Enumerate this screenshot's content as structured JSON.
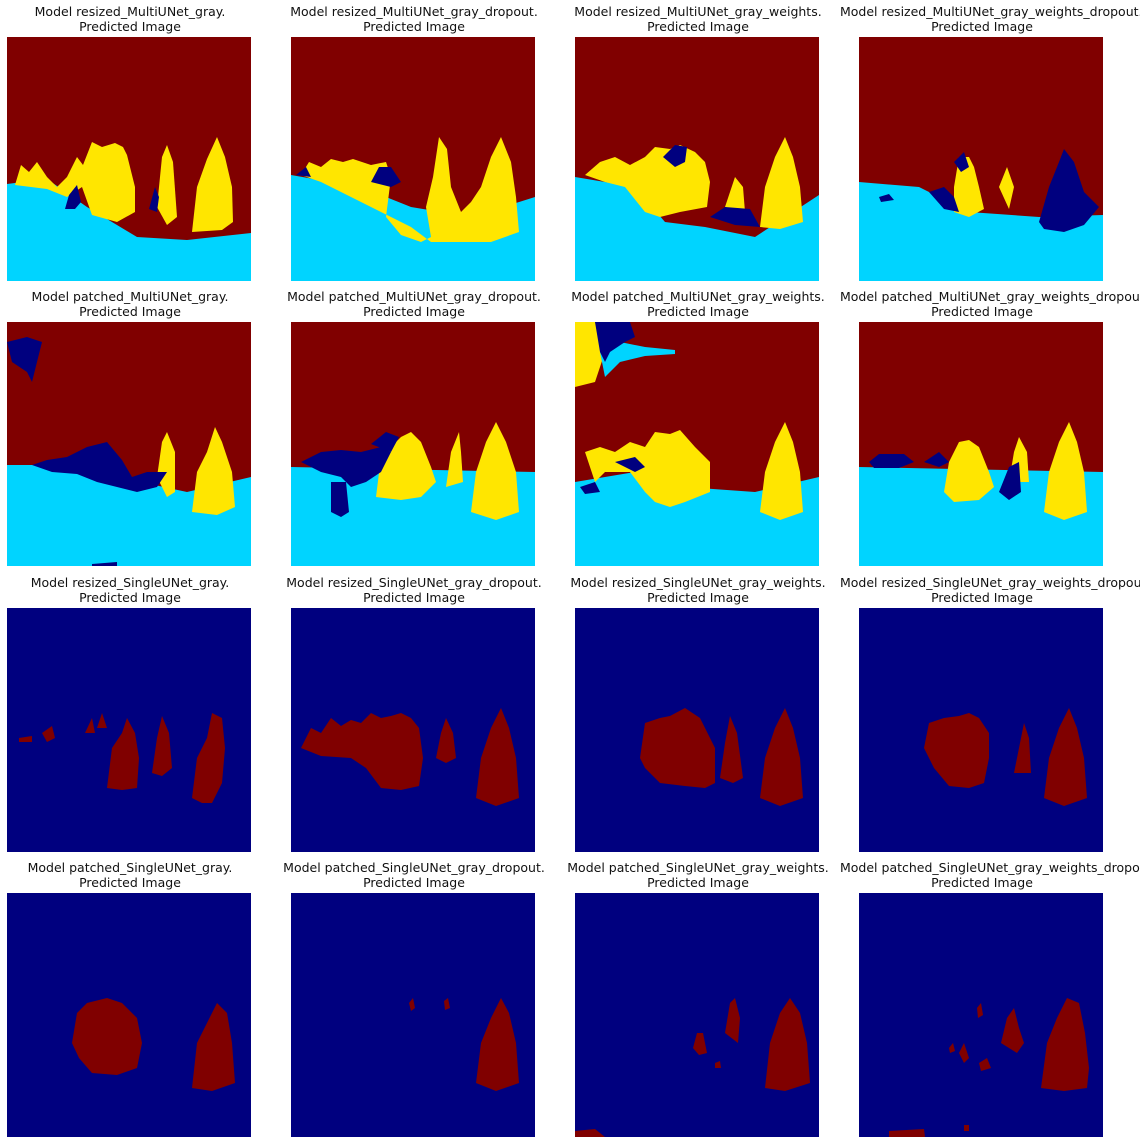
{
  "figure": {
    "subtitle": "Predicted Image",
    "colors": {
      "sky": "#800000",
      "water": "#00d4ff",
      "rock": "#ffe600",
      "other": "#00007f"
    },
    "panels": [
      {
        "title": "Model resized_MultiUNet_gray.",
        "kind": "multi",
        "variant": 0
      },
      {
        "title": "Model resized_MultiUNet_gray_dropout.",
        "kind": "multi",
        "variant": 1
      },
      {
        "title": "Model resized_MultiUNet_gray_weights.",
        "kind": "multi",
        "variant": 2
      },
      {
        "title": "Model resized_MultiUNet_gray_weights_dropout.",
        "kind": "multi",
        "variant": 3
      },
      {
        "title": "Model patched_MultiUNet_gray.",
        "kind": "multi",
        "variant": 4
      },
      {
        "title": "Model patched_MultiUNet_gray_dropout.",
        "kind": "multi",
        "variant": 5
      },
      {
        "title": "Model patched_MultiUNet_gray_weights.",
        "kind": "multi",
        "variant": 6
      },
      {
        "title": "Model patched_MultiUNet_gray_weights_dropout.",
        "kind": "multi",
        "variant": 7
      },
      {
        "title": "Model resized_SingleUNet_gray.",
        "kind": "single",
        "variant": 0
      },
      {
        "title": "Model resized_SingleUNet_gray_dropout.",
        "kind": "single",
        "variant": 1
      },
      {
        "title": "Model resized_SingleUNet_gray_weights.",
        "kind": "single",
        "variant": 2
      },
      {
        "title": "Model resized_SingleUNet_gray_weights_dropout.",
        "kind": "single",
        "variant": 3
      },
      {
        "title": "Model patched_SingleUNet_gray.",
        "kind": "single",
        "variant": 4
      },
      {
        "title": "Model patched_SingleUNet_gray_dropout.",
        "kind": "single",
        "variant": 5
      },
      {
        "title": "Model patched_SingleUNet_gray_weights.",
        "kind": "single",
        "variant": 6
      },
      {
        "title": "Model patched_SingleUNet_gray_weights_dropout.",
        "kind": "single",
        "variant": 7
      }
    ]
  }
}
